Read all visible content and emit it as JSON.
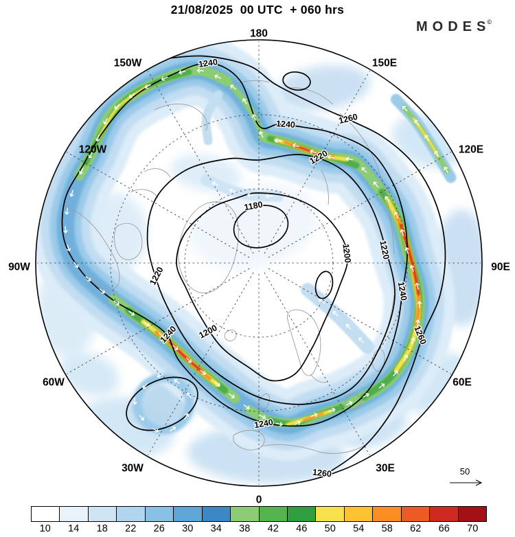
{
  "header": {
    "title": "21/08/2025  00 UTC  + 060 hrs",
    "brand": "MODES",
    "brand_mark": "©"
  },
  "map": {
    "lon_labels": [
      "180",
      "150E",
      "120E",
      "90E",
      "60E",
      "30E",
      "0",
      "30W",
      "60W",
      "90W",
      "120W",
      "150W"
    ],
    "contour_labels": [
      "1240",
      "1240",
      "1260",
      "1220",
      "1180",
      "1200",
      "1220",
      "1240",
      "1260",
      "1220",
      "1240",
      "1200",
      "1240",
      "1260"
    ],
    "reference_arrow_label": "50"
  },
  "colorbar": {
    "values": [
      "10",
      "14",
      "18",
      "22",
      "26",
      "30",
      "34",
      "38",
      "42",
      "46",
      "50",
      "54",
      "58",
      "62",
      "66",
      "70"
    ],
    "colors": [
      "#ffffff",
      "#e8f2fa",
      "#cfe5f4",
      "#afd6ee",
      "#88c1e4",
      "#5fa6d7",
      "#3d88c4",
      "#8ccc74",
      "#55b44e",
      "#2f9e3f",
      "#f7e14c",
      "#fdc22f",
      "#fb8d23",
      "#ee5a25",
      "#cf2a20",
      "#a31116"
    ]
  },
  "chart_data": {
    "type": "heatmap",
    "title": "21/08/2025 00 UTC + 060 hrs",
    "projection": "Northern Hemisphere polar stereographic",
    "shaded_field": "wind speed",
    "shading_levels": [
      10,
      14,
      18,
      22,
      26,
      30,
      34,
      38,
      42,
      46,
      50,
      54,
      58,
      62,
      66,
      70
    ],
    "shading_colors": [
      "#ffffff",
      "#e8f2fa",
      "#cfe5f4",
      "#afd6ee",
      "#88c1e4",
      "#5fa6d7",
      "#3d88c4",
      "#8ccc74",
      "#55b44e",
      "#2f9e3f",
      "#f7e14c",
      "#fdc22f",
      "#fb8d23",
      "#ee5a25",
      "#cf2a20",
      "#a31116"
    ],
    "contour_values_visible": [
      1180,
      1200,
      1220,
      1240,
      1260
    ],
    "contour_interval": 20,
    "longitude_labels": [
      "180",
      "150E",
      "120E",
      "90E",
      "60E",
      "30E",
      "0",
      "30W",
      "60W",
      "90W",
      "120W",
      "150W"
    ],
    "wind_reference_arrow": 50,
    "legend_position": "bottom",
    "source_brand": "MODES"
  }
}
